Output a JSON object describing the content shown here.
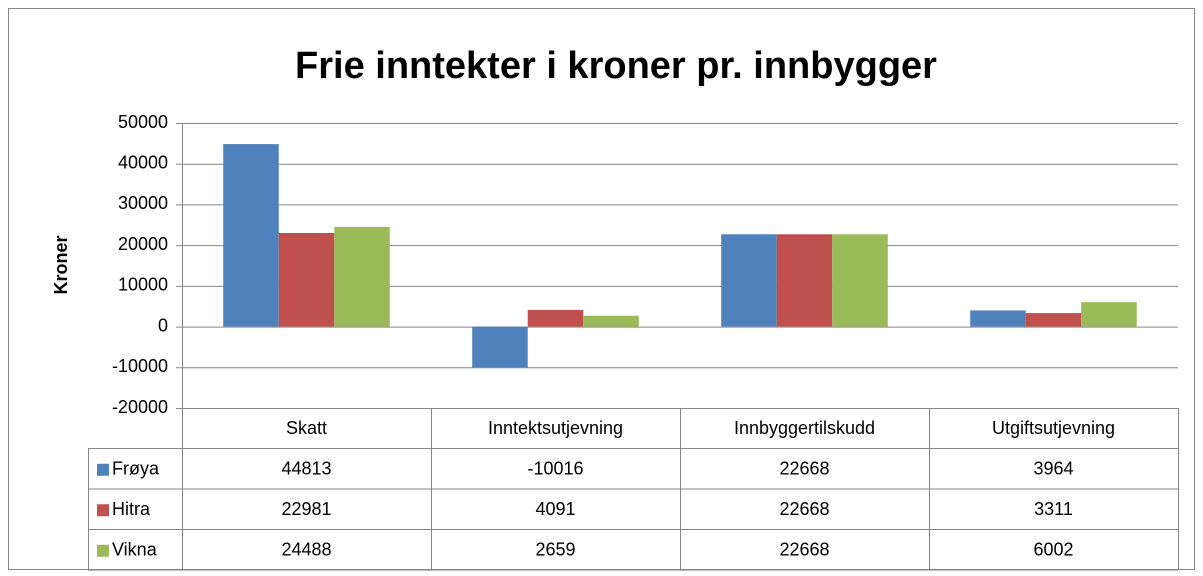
{
  "chart_data": {
    "type": "bar",
    "title": "Frie inntekter i kroner pr. innbygger",
    "y_label": "Kroner",
    "categories": [
      "Skatt",
      "Inntektsutjevning",
      "Innbyggertilskudd",
      "Utgiftsutjevning"
    ],
    "series": [
      {
        "name": "Frøya",
        "color": "#4f81bd",
        "values": [
          44813,
          -10016,
          22668,
          3964
        ]
      },
      {
        "name": "Hitra",
        "color": "#c0504d",
        "values": [
          22981,
          4091,
          22668,
          3311
        ]
      },
      {
        "name": "Vikna",
        "color": "#9bbb59",
        "values": [
          24488,
          2659,
          22668,
          6002
        ]
      }
    ],
    "ylim": [
      -20000,
      50000
    ],
    "yticks": [
      -20000,
      -10000,
      0,
      10000,
      20000,
      30000,
      40000,
      50000
    ],
    "grid": true,
    "data_table": true
  }
}
